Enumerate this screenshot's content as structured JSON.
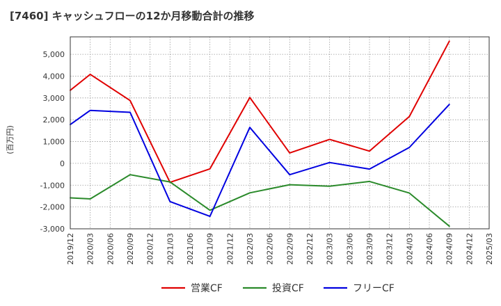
{
  "title": "[7460]  キャッシュフローの12か月移動合計の推移",
  "chart_data": {
    "type": "line",
    "title": "[7460]  キャッシュフローの12か月移動合計の推移",
    "xlabel": "",
    "ylabel": "(百万円)",
    "ylim": [
      -3000,
      5800
    ],
    "yticks": [
      -3000,
      -2000,
      -1000,
      0,
      1000,
      2000,
      3000,
      4000,
      5000
    ],
    "ytick_labels": [
      "-3,000",
      "-2,000",
      "-1,000",
      "0",
      "1,000",
      "2,000",
      "3,000",
      "4,000",
      "5,000"
    ],
    "categories": [
      "2019/12",
      "2020/03",
      "2020/06",
      "2020/09",
      "2020/12",
      "2021/03",
      "2021/06",
      "2021/09",
      "2021/12",
      "2022/03",
      "2022/06",
      "2022/09",
      "2022/12",
      "2023/03",
      "2023/06",
      "2023/09",
      "2023/12",
      "2024/03",
      "2024/06",
      "2024/09",
      "2024/12",
      "2025/03"
    ],
    "grid": true,
    "legend_position": "bottom",
    "series": [
      {
        "name": "営業CF",
        "color": "#e00000",
        "points": [
          [
            "2019/12",
            3350
          ],
          [
            "2020/03",
            4080
          ],
          [
            "2020/09",
            2880
          ],
          [
            "2021/03",
            -870
          ],
          [
            "2021/09",
            -250
          ],
          [
            "2022/03",
            3020
          ],
          [
            "2022/09",
            480
          ],
          [
            "2023/03",
            1100
          ],
          [
            "2023/09",
            560
          ],
          [
            "2024/03",
            2150
          ],
          [
            "2024/09",
            5600
          ]
        ]
      },
      {
        "name": "投資CF",
        "color": "#2a8a2a",
        "points": [
          [
            "2019/12",
            -1580
          ],
          [
            "2020/03",
            -1630
          ],
          [
            "2020/09",
            -520
          ],
          [
            "2021/03",
            -850
          ],
          [
            "2021/09",
            -2150
          ],
          [
            "2022/03",
            -1350
          ],
          [
            "2022/09",
            -980
          ],
          [
            "2023/03",
            -1050
          ],
          [
            "2023/09",
            -830
          ],
          [
            "2024/03",
            -1360
          ],
          [
            "2024/09",
            -2880
          ]
        ]
      },
      {
        "name": "フリーCF",
        "color": "#0000e0",
        "points": [
          [
            "2019/12",
            1780
          ],
          [
            "2020/03",
            2430
          ],
          [
            "2020/09",
            2340
          ],
          [
            "2021/03",
            -1750
          ],
          [
            "2021/09",
            -2430
          ],
          [
            "2022/03",
            1650
          ],
          [
            "2022/09",
            -520
          ],
          [
            "2023/03",
            40
          ],
          [
            "2023/09",
            -260
          ],
          [
            "2024/03",
            730
          ],
          [
            "2024/09",
            2700
          ]
        ]
      }
    ]
  }
}
